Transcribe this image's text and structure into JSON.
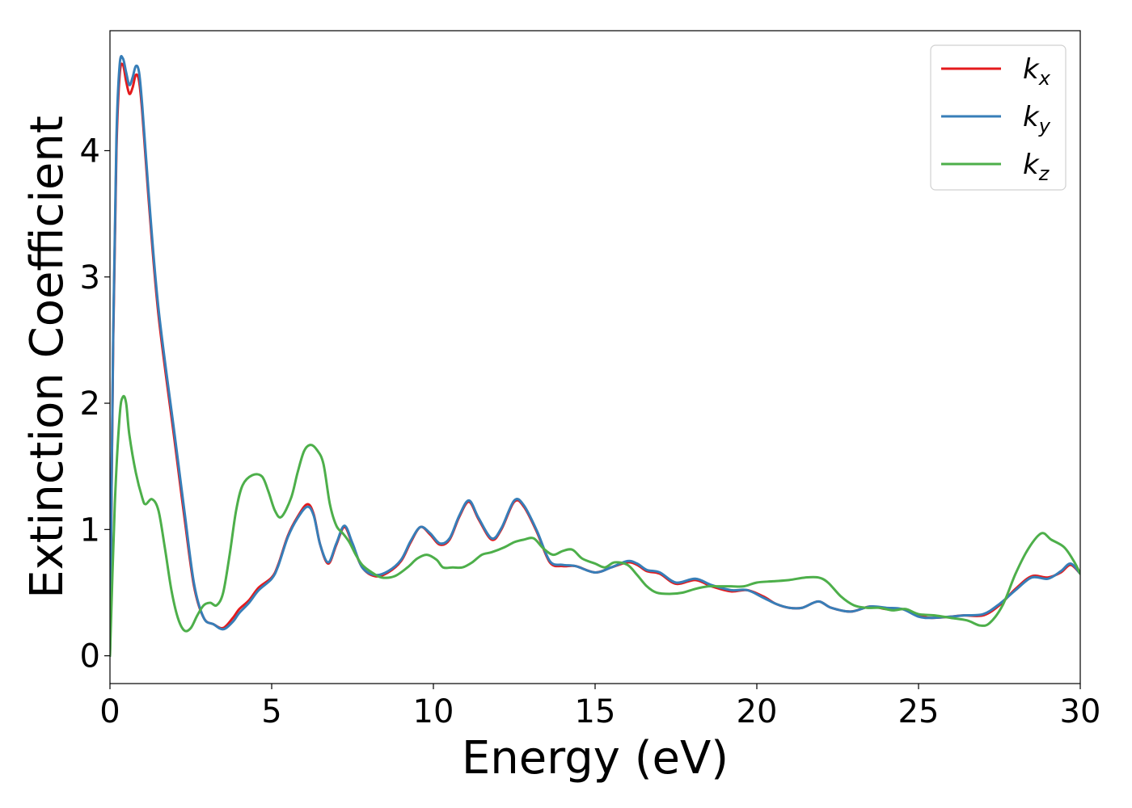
{
  "chart_data": {
    "type": "line",
    "xlabel": "Energy (eV)",
    "ylabel": "Extinction Coefficient",
    "xlim": [
      0,
      30
    ],
    "ylim": [
      -0.22,
      4.95
    ],
    "xticks": [
      0,
      5,
      10,
      15,
      20,
      25,
      30
    ],
    "yticks": [
      0,
      1,
      2,
      3,
      4
    ],
    "grid": false,
    "legend_position": "top-right",
    "series": [
      {
        "name": "k",
        "subscript": "x",
        "color": "#e41a1c",
        "points": [
          [
            0,
            0
          ],
          [
            0.1,
            2.5
          ],
          [
            0.2,
            4.0
          ],
          [
            0.3,
            4.6
          ],
          [
            0.4,
            4.68
          ],
          [
            0.5,
            4.55
          ],
          [
            0.6,
            4.45
          ],
          [
            0.7,
            4.5
          ],
          [
            0.8,
            4.6
          ],
          [
            0.9,
            4.55
          ],
          [
            1.0,
            4.3
          ],
          [
            1.2,
            3.6
          ],
          [
            1.5,
            2.7
          ],
          [
            2.0,
            1.7
          ],
          [
            2.3,
            1.1
          ],
          [
            2.6,
            0.55
          ],
          [
            2.9,
            0.3
          ],
          [
            3.2,
            0.25
          ],
          [
            3.5,
            0.22
          ],
          [
            3.8,
            0.3
          ],
          [
            4.0,
            0.37
          ],
          [
            4.3,
            0.44
          ],
          [
            4.6,
            0.54
          ],
          [
            5.0,
            0.62
          ],
          [
            5.2,
            0.72
          ],
          [
            5.5,
            0.95
          ],
          [
            5.8,
            1.1
          ],
          [
            6.1,
            1.2
          ],
          [
            6.3,
            1.12
          ],
          [
            6.5,
            0.88
          ],
          [
            6.75,
            0.73
          ],
          [
            7.0,
            0.88
          ],
          [
            7.25,
            1.02
          ],
          [
            7.5,
            0.88
          ],
          [
            7.8,
            0.7
          ],
          [
            8.2,
            0.63
          ],
          [
            8.6,
            0.66
          ],
          [
            9.0,
            0.75
          ],
          [
            9.3,
            0.9
          ],
          [
            9.6,
            1.02
          ],
          [
            9.9,
            0.96
          ],
          [
            10.2,
            0.88
          ],
          [
            10.5,
            0.92
          ],
          [
            10.8,
            1.1
          ],
          [
            11.1,
            1.22
          ],
          [
            11.4,
            1.08
          ],
          [
            11.8,
            0.92
          ],
          [
            12.1,
            1.0
          ],
          [
            12.5,
            1.22
          ],
          [
            12.8,
            1.18
          ],
          [
            13.2,
            0.98
          ],
          [
            13.6,
            0.74
          ],
          [
            14.0,
            0.71
          ],
          [
            14.4,
            0.71
          ],
          [
            15.0,
            0.66
          ],
          [
            15.5,
            0.7
          ],
          [
            16.0,
            0.74
          ],
          [
            16.3,
            0.72
          ],
          [
            16.6,
            0.67
          ],
          [
            17.0,
            0.65
          ],
          [
            17.5,
            0.57
          ],
          [
            18.1,
            0.6
          ],
          [
            18.6,
            0.55
          ],
          [
            19.2,
            0.51
          ],
          [
            19.7,
            0.52
          ],
          [
            20.2,
            0.47
          ],
          [
            20.6,
            0.41
          ],
          [
            21.0,
            0.38
          ],
          [
            21.4,
            0.38
          ],
          [
            21.9,
            0.43
          ],
          [
            22.3,
            0.38
          ],
          [
            22.9,
            0.35
          ],
          [
            23.5,
            0.39
          ],
          [
            24.0,
            0.37
          ],
          [
            24.5,
            0.37
          ],
          [
            25.0,
            0.32
          ],
          [
            25.4,
            0.3
          ],
          [
            26.0,
            0.31
          ],
          [
            26.4,
            0.32
          ],
          [
            27.0,
            0.32
          ],
          [
            27.5,
            0.4
          ],
          [
            28.0,
            0.53
          ],
          [
            28.5,
            0.63
          ],
          [
            29.0,
            0.62
          ],
          [
            29.4,
            0.66
          ],
          [
            29.7,
            0.72
          ],
          [
            30.0,
            0.65
          ]
        ]
      },
      {
        "name": "k",
        "subscript": "y",
        "color": "#377eb8",
        "points": [
          [
            0,
            0
          ],
          [
            0.1,
            2.55
          ],
          [
            0.2,
            4.1
          ],
          [
            0.3,
            4.68
          ],
          [
            0.4,
            4.73
          ],
          [
            0.5,
            4.62
          ],
          [
            0.6,
            4.52
          ],
          [
            0.7,
            4.58
          ],
          [
            0.8,
            4.67
          ],
          [
            0.9,
            4.62
          ],
          [
            1.0,
            4.35
          ],
          [
            1.2,
            3.65
          ],
          [
            1.5,
            2.75
          ],
          [
            2.0,
            1.75
          ],
          [
            2.3,
            1.15
          ],
          [
            2.6,
            0.57
          ],
          [
            2.9,
            0.3
          ],
          [
            3.2,
            0.25
          ],
          [
            3.5,
            0.21
          ],
          [
            3.8,
            0.27
          ],
          [
            4.0,
            0.34
          ],
          [
            4.3,
            0.42
          ],
          [
            4.6,
            0.52
          ],
          [
            5.0,
            0.61
          ],
          [
            5.2,
            0.71
          ],
          [
            5.5,
            0.94
          ],
          [
            5.8,
            1.09
          ],
          [
            6.1,
            1.18
          ],
          [
            6.3,
            1.11
          ],
          [
            6.5,
            0.88
          ],
          [
            6.75,
            0.74
          ],
          [
            7.0,
            0.89
          ],
          [
            7.25,
            1.03
          ],
          [
            7.5,
            0.89
          ],
          [
            7.8,
            0.7
          ],
          [
            8.2,
            0.64
          ],
          [
            8.6,
            0.67
          ],
          [
            9.0,
            0.76
          ],
          [
            9.3,
            0.91
          ],
          [
            9.6,
            1.02
          ],
          [
            9.9,
            0.97
          ],
          [
            10.2,
            0.89
          ],
          [
            10.5,
            0.93
          ],
          [
            10.8,
            1.11
          ],
          [
            11.1,
            1.23
          ],
          [
            11.4,
            1.09
          ],
          [
            11.8,
            0.93
          ],
          [
            12.1,
            1.01
          ],
          [
            12.5,
            1.23
          ],
          [
            12.8,
            1.19
          ],
          [
            13.2,
            0.99
          ],
          [
            13.6,
            0.75
          ],
          [
            14.0,
            0.72
          ],
          [
            14.4,
            0.71
          ],
          [
            15.0,
            0.66
          ],
          [
            15.5,
            0.7
          ],
          [
            16.0,
            0.75
          ],
          [
            16.3,
            0.73
          ],
          [
            16.6,
            0.68
          ],
          [
            17.0,
            0.66
          ],
          [
            17.5,
            0.58
          ],
          [
            18.1,
            0.61
          ],
          [
            18.6,
            0.56
          ],
          [
            19.2,
            0.52
          ],
          [
            19.7,
            0.52
          ],
          [
            20.2,
            0.46
          ],
          [
            20.6,
            0.41
          ],
          [
            21.0,
            0.38
          ],
          [
            21.4,
            0.38
          ],
          [
            21.9,
            0.43
          ],
          [
            22.3,
            0.38
          ],
          [
            22.9,
            0.35
          ],
          [
            23.5,
            0.39
          ],
          [
            24.0,
            0.38
          ],
          [
            24.5,
            0.37
          ],
          [
            25.0,
            0.31
          ],
          [
            25.4,
            0.3
          ],
          [
            26.0,
            0.31
          ],
          [
            26.4,
            0.32
          ],
          [
            27.0,
            0.33
          ],
          [
            27.5,
            0.41
          ],
          [
            28.0,
            0.52
          ],
          [
            28.5,
            0.62
          ],
          [
            29.0,
            0.61
          ],
          [
            29.4,
            0.67
          ],
          [
            29.7,
            0.73
          ],
          [
            30.0,
            0.65
          ]
        ]
      },
      {
        "name": "k",
        "subscript": "z",
        "color": "#4daf4a",
        "points": [
          [
            0,
            0
          ],
          [
            0.15,
            1.2
          ],
          [
            0.3,
            1.9
          ],
          [
            0.4,
            2.05
          ],
          [
            0.5,
            2.0
          ],
          [
            0.6,
            1.75
          ],
          [
            0.8,
            1.45
          ],
          [
            1.0,
            1.25
          ],
          [
            1.1,
            1.2
          ],
          [
            1.3,
            1.24
          ],
          [
            1.5,
            1.15
          ],
          [
            1.7,
            0.85
          ],
          [
            1.9,
            0.52
          ],
          [
            2.1,
            0.3
          ],
          [
            2.3,
            0.2
          ],
          [
            2.5,
            0.22
          ],
          [
            2.7,
            0.32
          ],
          [
            2.9,
            0.4
          ],
          [
            3.1,
            0.42
          ],
          [
            3.3,
            0.4
          ],
          [
            3.5,
            0.5
          ],
          [
            3.7,
            0.8
          ],
          [
            3.9,
            1.15
          ],
          [
            4.1,
            1.35
          ],
          [
            4.4,
            1.43
          ],
          [
            4.7,
            1.42
          ],
          [
            4.9,
            1.3
          ],
          [
            5.1,
            1.15
          ],
          [
            5.3,
            1.1
          ],
          [
            5.6,
            1.25
          ],
          [
            5.8,
            1.45
          ],
          [
            6.0,
            1.62
          ],
          [
            6.2,
            1.67
          ],
          [
            6.4,
            1.63
          ],
          [
            6.6,
            1.52
          ],
          [
            6.8,
            1.2
          ],
          [
            7.0,
            1.03
          ],
          [
            7.2,
            0.97
          ],
          [
            7.4,
            0.9
          ],
          [
            7.6,
            0.8
          ],
          [
            7.8,
            0.72
          ],
          [
            8.1,
            0.66
          ],
          [
            8.4,
            0.62
          ],
          [
            8.8,
            0.63
          ],
          [
            9.2,
            0.7
          ],
          [
            9.5,
            0.77
          ],
          [
            9.8,
            0.8
          ],
          [
            10.1,
            0.76
          ],
          [
            10.3,
            0.7
          ],
          [
            10.6,
            0.7
          ],
          [
            10.9,
            0.7
          ],
          [
            11.2,
            0.74
          ],
          [
            11.5,
            0.8
          ],
          [
            11.8,
            0.82
          ],
          [
            12.2,
            0.86
          ],
          [
            12.5,
            0.9
          ],
          [
            12.8,
            0.92
          ],
          [
            13.1,
            0.93
          ],
          [
            13.4,
            0.85
          ],
          [
            13.7,
            0.8
          ],
          [
            14.0,
            0.83
          ],
          [
            14.3,
            0.84
          ],
          [
            14.6,
            0.77
          ],
          [
            15.0,
            0.73
          ],
          [
            15.3,
            0.7
          ],
          [
            15.6,
            0.74
          ],
          [
            16.0,
            0.72
          ],
          [
            16.3,
            0.64
          ],
          [
            16.6,
            0.55
          ],
          [
            16.9,
            0.5
          ],
          [
            17.3,
            0.49
          ],
          [
            17.7,
            0.5
          ],
          [
            18.1,
            0.53
          ],
          [
            18.5,
            0.55
          ],
          [
            18.8,
            0.55
          ],
          [
            19.2,
            0.55
          ],
          [
            19.6,
            0.55
          ],
          [
            20.0,
            0.58
          ],
          [
            20.5,
            0.59
          ],
          [
            21.0,
            0.6
          ],
          [
            21.5,
            0.62
          ],
          [
            21.9,
            0.62
          ],
          [
            22.2,
            0.58
          ],
          [
            22.6,
            0.47
          ],
          [
            23.0,
            0.4
          ],
          [
            23.4,
            0.38
          ],
          [
            23.8,
            0.38
          ],
          [
            24.2,
            0.36
          ],
          [
            24.6,
            0.37
          ],
          [
            25.0,
            0.33
          ],
          [
            25.5,
            0.32
          ],
          [
            26.0,
            0.3
          ],
          [
            26.5,
            0.28
          ],
          [
            26.9,
            0.24
          ],
          [
            27.2,
            0.26
          ],
          [
            27.6,
            0.4
          ],
          [
            28.0,
            0.65
          ],
          [
            28.4,
            0.85
          ],
          [
            28.8,
            0.97
          ],
          [
            29.1,
            0.92
          ],
          [
            29.5,
            0.86
          ],
          [
            29.8,
            0.75
          ],
          [
            30.0,
            0.65
          ]
        ]
      }
    ]
  }
}
